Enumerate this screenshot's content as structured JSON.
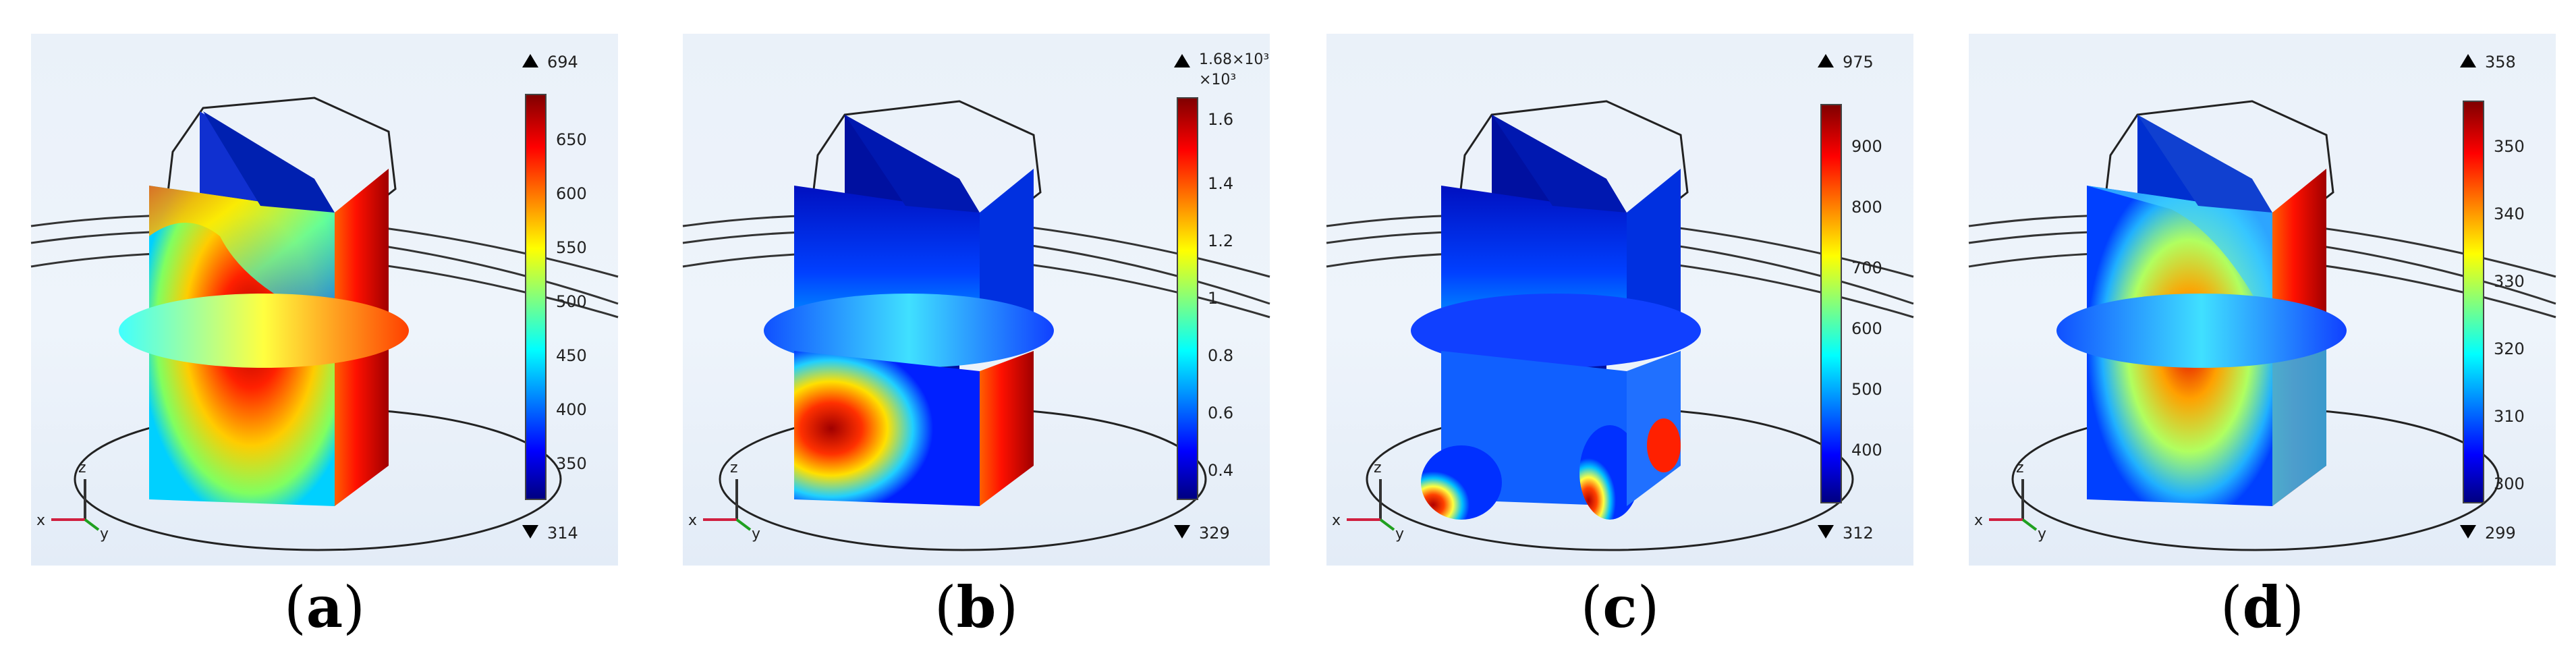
{
  "panels": [
    {
      "id": "a",
      "caption": "a",
      "colorbar": {
        "max": "694",
        "min": "314",
        "exponent": "",
        "ticks": [
          "650",
          "600",
          "550",
          "500",
          "450",
          "400",
          "350"
        ]
      },
      "axes": {
        "x": "x",
        "y": "y",
        "z": "z"
      }
    },
    {
      "id": "b",
      "caption": "b",
      "colorbar": {
        "max": "1.68×10³",
        "min": "329",
        "exponent": "×10³",
        "ticks": [
          "1.6",
          "1.4",
          "1.2",
          "1",
          "0.8",
          "0.6",
          "0.4"
        ]
      },
      "axes": {
        "x": "x",
        "y": "y",
        "z": "z"
      }
    },
    {
      "id": "c",
      "caption": "c",
      "colorbar": {
        "max": "975",
        "min": "312",
        "exponent": "",
        "ticks": [
          "900",
          "800",
          "700",
          "600",
          "500",
          "400"
        ]
      },
      "axes": {
        "x": "x",
        "y": "y",
        "z": "z"
      }
    },
    {
      "id": "d",
      "caption": "d",
      "colorbar": {
        "max": "358",
        "min": "299",
        "exponent": "",
        "ticks": [
          "350",
          "340",
          "330",
          "320",
          "310",
          "300"
        ]
      },
      "axes": {
        "x": "x",
        "y": "y",
        "z": "z"
      }
    }
  ],
  "colors": {
    "jet": [
      "#00007f",
      "#0000ff",
      "#00ffff",
      "#ffff00",
      "#ff0000",
      "#7f0000"
    ]
  }
}
